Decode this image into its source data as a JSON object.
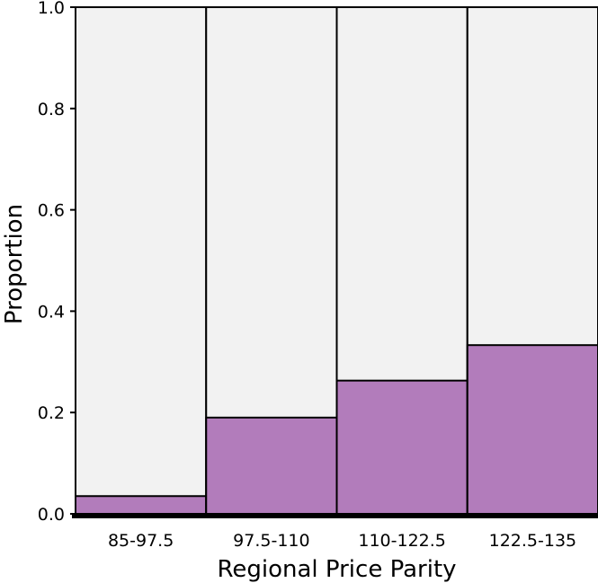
{
  "chart_data": {
    "type": "bar",
    "subtype": "stacked-proportion",
    "title": "",
    "xlabel": "Regional Price Parity",
    "ylabel": "Proportion",
    "categories": [
      "85-97.5",
      "97.5-110",
      "110-122.5",
      "122.5-135"
    ],
    "values": [
      0.035,
      0.19,
      0.263,
      0.333
    ],
    "remainder_values": [
      0.965,
      0.81,
      0.737,
      0.667
    ],
    "ylim": [
      0,
      1
    ],
    "yticks": [
      "0.0",
      "0.2",
      "0.4",
      "0.6",
      "0.8",
      "1.0"
    ],
    "grid": false,
    "legend": "none",
    "colors": {
      "filled": "#b27cbb",
      "remainder": "#f2f2f2",
      "outline": "#000000"
    }
  }
}
